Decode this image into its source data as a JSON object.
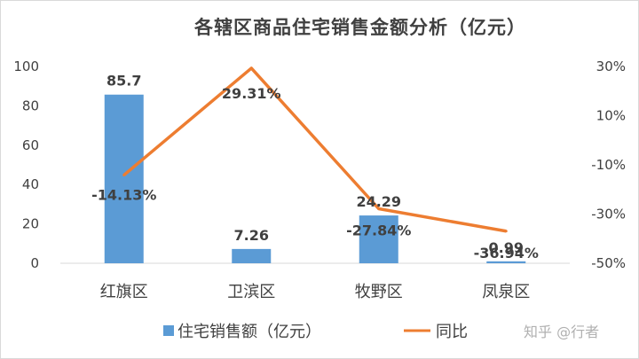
{
  "chart_data": {
    "type": "bar",
    "title": "各辖区商品住宅销售金额分析（亿元）",
    "categories": [
      "红旗区",
      "卫滨区",
      "牧野区",
      "凤泉区"
    ],
    "series": [
      {
        "name": "住宅销售额（亿元）",
        "type": "bar",
        "axis": "left",
        "color": "#5b9bd5",
        "values": [
          85.7,
          7.26,
          24.29,
          0.99
        ],
        "labels": [
          "85.7",
          "7.26",
          "24.29",
          "0.99"
        ]
      },
      {
        "name": "同比",
        "type": "line",
        "axis": "right",
        "color": "#ed7d31",
        "values": [
          -14.13,
          29.31,
          -27.84,
          -36.94
        ],
        "labels": [
          "-14.13%",
          "29.31%",
          "-27.84%",
          "-36.94%"
        ]
      }
    ],
    "y_left": {
      "ticks": [
        "0",
        "20",
        "40",
        "60",
        "80",
        "100"
      ],
      "ylim": [
        0,
        100
      ]
    },
    "y_right": {
      "ticks": [
        "-50%",
        "-30%",
        "-10%",
        "10%",
        "30%"
      ],
      "ylim": [
        -50,
        30
      ]
    },
    "grid": false,
    "legend": "bottom"
  },
  "watermark": "知乎 @行者"
}
